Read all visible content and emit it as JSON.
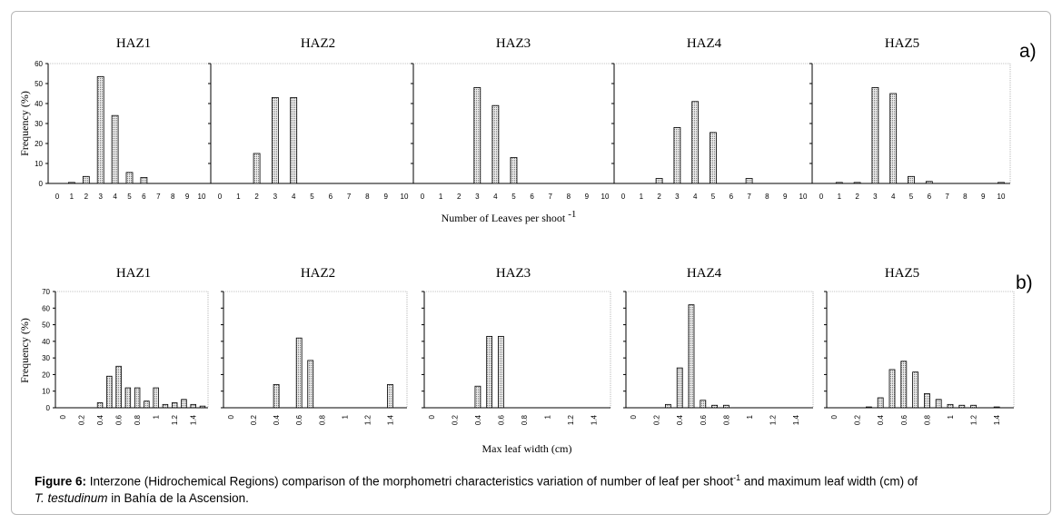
{
  "panel_letters": [
    "a)",
    "b)"
  ],
  "xlabel_a": "Number of Leaves per shoot",
  "xlabel_a_sup": "-1",
  "xlabel_b": "Max leaf width (cm)",
  "ylabel": "Frequency (%)",
  "caption": {
    "label": "Figure 6:",
    "text1": " Interzone (Hidrochemical Regions) comparison of the morphometri characteristics variation of number of leaf per shoot",
    "sup": "-1",
    "text2": " and maximum leaf width (cm) of",
    "species": "T. testudinum",
    "text3": " in Bahía de la Ascension."
  },
  "chart_data": [
    {
      "type": "bar",
      "title": "HAZ1",
      "ylabel": "Frequency (%)",
      "ylim": [
        0,
        60
      ],
      "yticks": [
        "0",
        "10",
        "20",
        "30",
        "40",
        "50",
        "60"
      ],
      "categories": [
        "0",
        "1",
        "2",
        "3",
        "4",
        "5",
        "6",
        "7",
        "8",
        "9",
        "10"
      ],
      "values": [
        0,
        0.5,
        3.5,
        53.5,
        34,
        5.5,
        3,
        0,
        0,
        0,
        0
      ]
    },
    {
      "type": "bar",
      "title": "HAZ2",
      "ylim": [
        0,
        60
      ],
      "categories": [
        "0",
        "1",
        "2",
        "3",
        "4",
        "5",
        "6",
        "7",
        "8",
        "9",
        "10"
      ],
      "values": [
        0,
        0,
        15,
        43,
        43,
        0,
        0,
        0,
        0,
        0,
        0
      ]
    },
    {
      "type": "bar",
      "title": "HAZ3",
      "ylim": [
        0,
        60
      ],
      "categories": [
        "0",
        "1",
        "2",
        "3",
        "4",
        "5",
        "6",
        "7",
        "8",
        "9",
        "10"
      ],
      "values": [
        0,
        0,
        0,
        48,
        39,
        13,
        0,
        0,
        0,
        0,
        0
      ]
    },
    {
      "type": "bar",
      "title": "HAZ4",
      "ylim": [
        0,
        60
      ],
      "categories": [
        "0",
        "1",
        "2",
        "3",
        "4",
        "5",
        "6",
        "7",
        "8",
        "9",
        "10"
      ],
      "values": [
        0,
        0,
        2.5,
        28,
        41,
        25.5,
        0,
        2.5,
        0,
        0,
        0
      ]
    },
    {
      "type": "bar",
      "title": "HAZ5",
      "ylim": [
        0,
        60
      ],
      "categories": [
        "0",
        "1",
        "2",
        "3",
        "4",
        "5",
        "6",
        "7",
        "8",
        "9",
        "10"
      ],
      "values": [
        0,
        0.5,
        0.5,
        48,
        45,
        3.5,
        1,
        0,
        0,
        0,
        0.5
      ]
    },
    {
      "type": "bar",
      "title": "HAZ1",
      "ylabel": "Frequency (%)",
      "ylim": [
        0,
        70
      ],
      "yticks": [
        "0",
        "10",
        "20",
        "30",
        "40",
        "50",
        "60",
        "70"
      ],
      "x": [
        0,
        0.1,
        0.2,
        0.3,
        0.4,
        0.5,
        0.6,
        0.7,
        0.8,
        0.9,
        1.0,
        1.1,
        1.2,
        1.3,
        1.4,
        1.5
      ],
      "values": [
        0,
        0,
        0,
        0,
        3,
        19,
        25,
        12,
        12,
        4,
        12,
        2,
        3,
        5,
        2,
        1
      ],
      "xticks": [
        "0",
        "0.2",
        "0.4",
        "0.6",
        "0.8",
        "1",
        "1.2",
        "1.4"
      ]
    },
    {
      "type": "bar",
      "title": "HAZ2",
      "ylim": [
        0,
        70
      ],
      "x": [
        0,
        0.1,
        0.2,
        0.3,
        0.4,
        0.5,
        0.6,
        0.7,
        0.8,
        0.9,
        1.0,
        1.1,
        1.2,
        1.3,
        1.4,
        1.5
      ],
      "values": [
        0,
        0,
        0,
        0,
        14,
        0,
        42,
        28.5,
        0,
        0,
        0,
        0,
        0,
        0,
        14,
        0
      ],
      "xticks": [
        "0",
        "0.2",
        "0.4",
        "0.6",
        "0.8",
        "1",
        "1.2",
        "1.4"
      ]
    },
    {
      "type": "bar",
      "title": "HAZ3",
      "ylim": [
        0,
        70
      ],
      "x": [
        0,
        0.1,
        0.2,
        0.3,
        0.4,
        0.5,
        0.6,
        0.7,
        0.8,
        0.9,
        1.0,
        1.1,
        1.2,
        1.3,
        1.4,
        1.5
      ],
      "values": [
        0,
        0,
        0,
        0,
        13,
        43,
        43,
        0,
        0,
        0,
        0,
        0,
        0,
        0,
        0,
        0
      ],
      "xticks": [
        "0",
        "0.2",
        "0.4",
        "0.6",
        "0.8",
        "1",
        "1.2",
        "1.4"
      ]
    },
    {
      "type": "bar",
      "title": "HAZ4",
      "ylim": [
        0,
        70
      ],
      "x": [
        0,
        0.1,
        0.2,
        0.3,
        0.4,
        0.5,
        0.6,
        0.7,
        0.8,
        0.9,
        1.0,
        1.1,
        1.2,
        1.3,
        1.4,
        1.5
      ],
      "values": [
        0,
        0,
        0,
        2,
        24,
        62,
        4.5,
        1.5,
        1.5,
        0,
        0,
        0,
        0,
        0,
        0,
        0
      ],
      "xticks": [
        "0",
        "0.2",
        "0.4",
        "0.6",
        "0.8",
        "1",
        "1.2",
        "1.4"
      ]
    },
    {
      "type": "bar",
      "title": "HAZ5",
      "ylim": [
        0,
        70
      ],
      "x": [
        0,
        0.1,
        0.2,
        0.3,
        0.4,
        0.5,
        0.6,
        0.7,
        0.8,
        0.9,
        1.0,
        1.1,
        1.2,
        1.3,
        1.4,
        1.5
      ],
      "values": [
        0,
        0,
        0,
        0.5,
        6,
        23,
        28,
        21.5,
        8.5,
        5,
        2,
        1.5,
        1.5,
        0,
        0.5,
        0
      ],
      "xticks": [
        "0",
        "0.2",
        "0.4",
        "0.6",
        "0.8",
        "1",
        "1.2",
        "1.4"
      ]
    }
  ]
}
